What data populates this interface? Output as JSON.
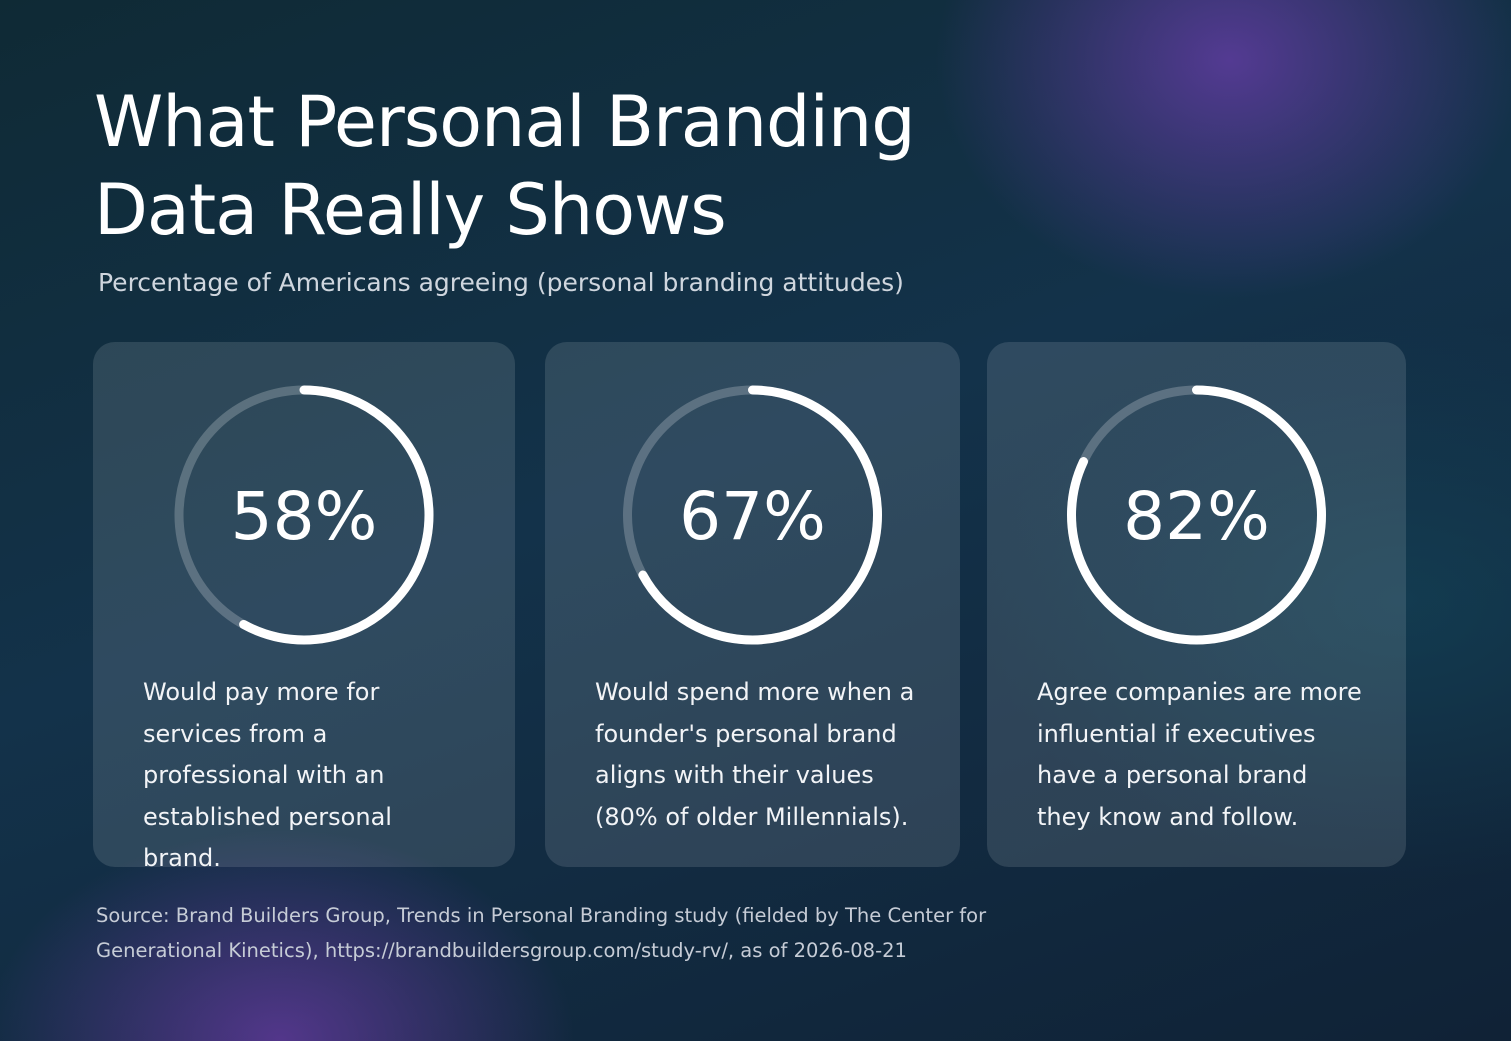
{
  "chart_data": {
    "type": "progress-ring",
    "title": "What Personal Branding Data Really Shows",
    "subtitle": "Percentage of Americans agreeing (personal branding attitudes)",
    "categories": [
      "Would pay more for services from a professional with an established personal brand.",
      "Would spend more when a founder's personal brand aligns with their values (80% of older Millennials).",
      "Agree companies are more influential if executives have a personal brand they know and follow."
    ],
    "values": [
      58,
      67,
      82
    ],
    "value_labels": [
      "58%",
      "67%",
      "82%"
    ],
    "ylim": [
      0,
      100
    ],
    "color": "#ffffff",
    "source": "Source: Brand Builders Group, Trends in Personal Branding study (fielded by The Center for Generational Kinetics), https://brandbuildersgroup.com/study-rv/, as of 2026-08-21"
  }
}
